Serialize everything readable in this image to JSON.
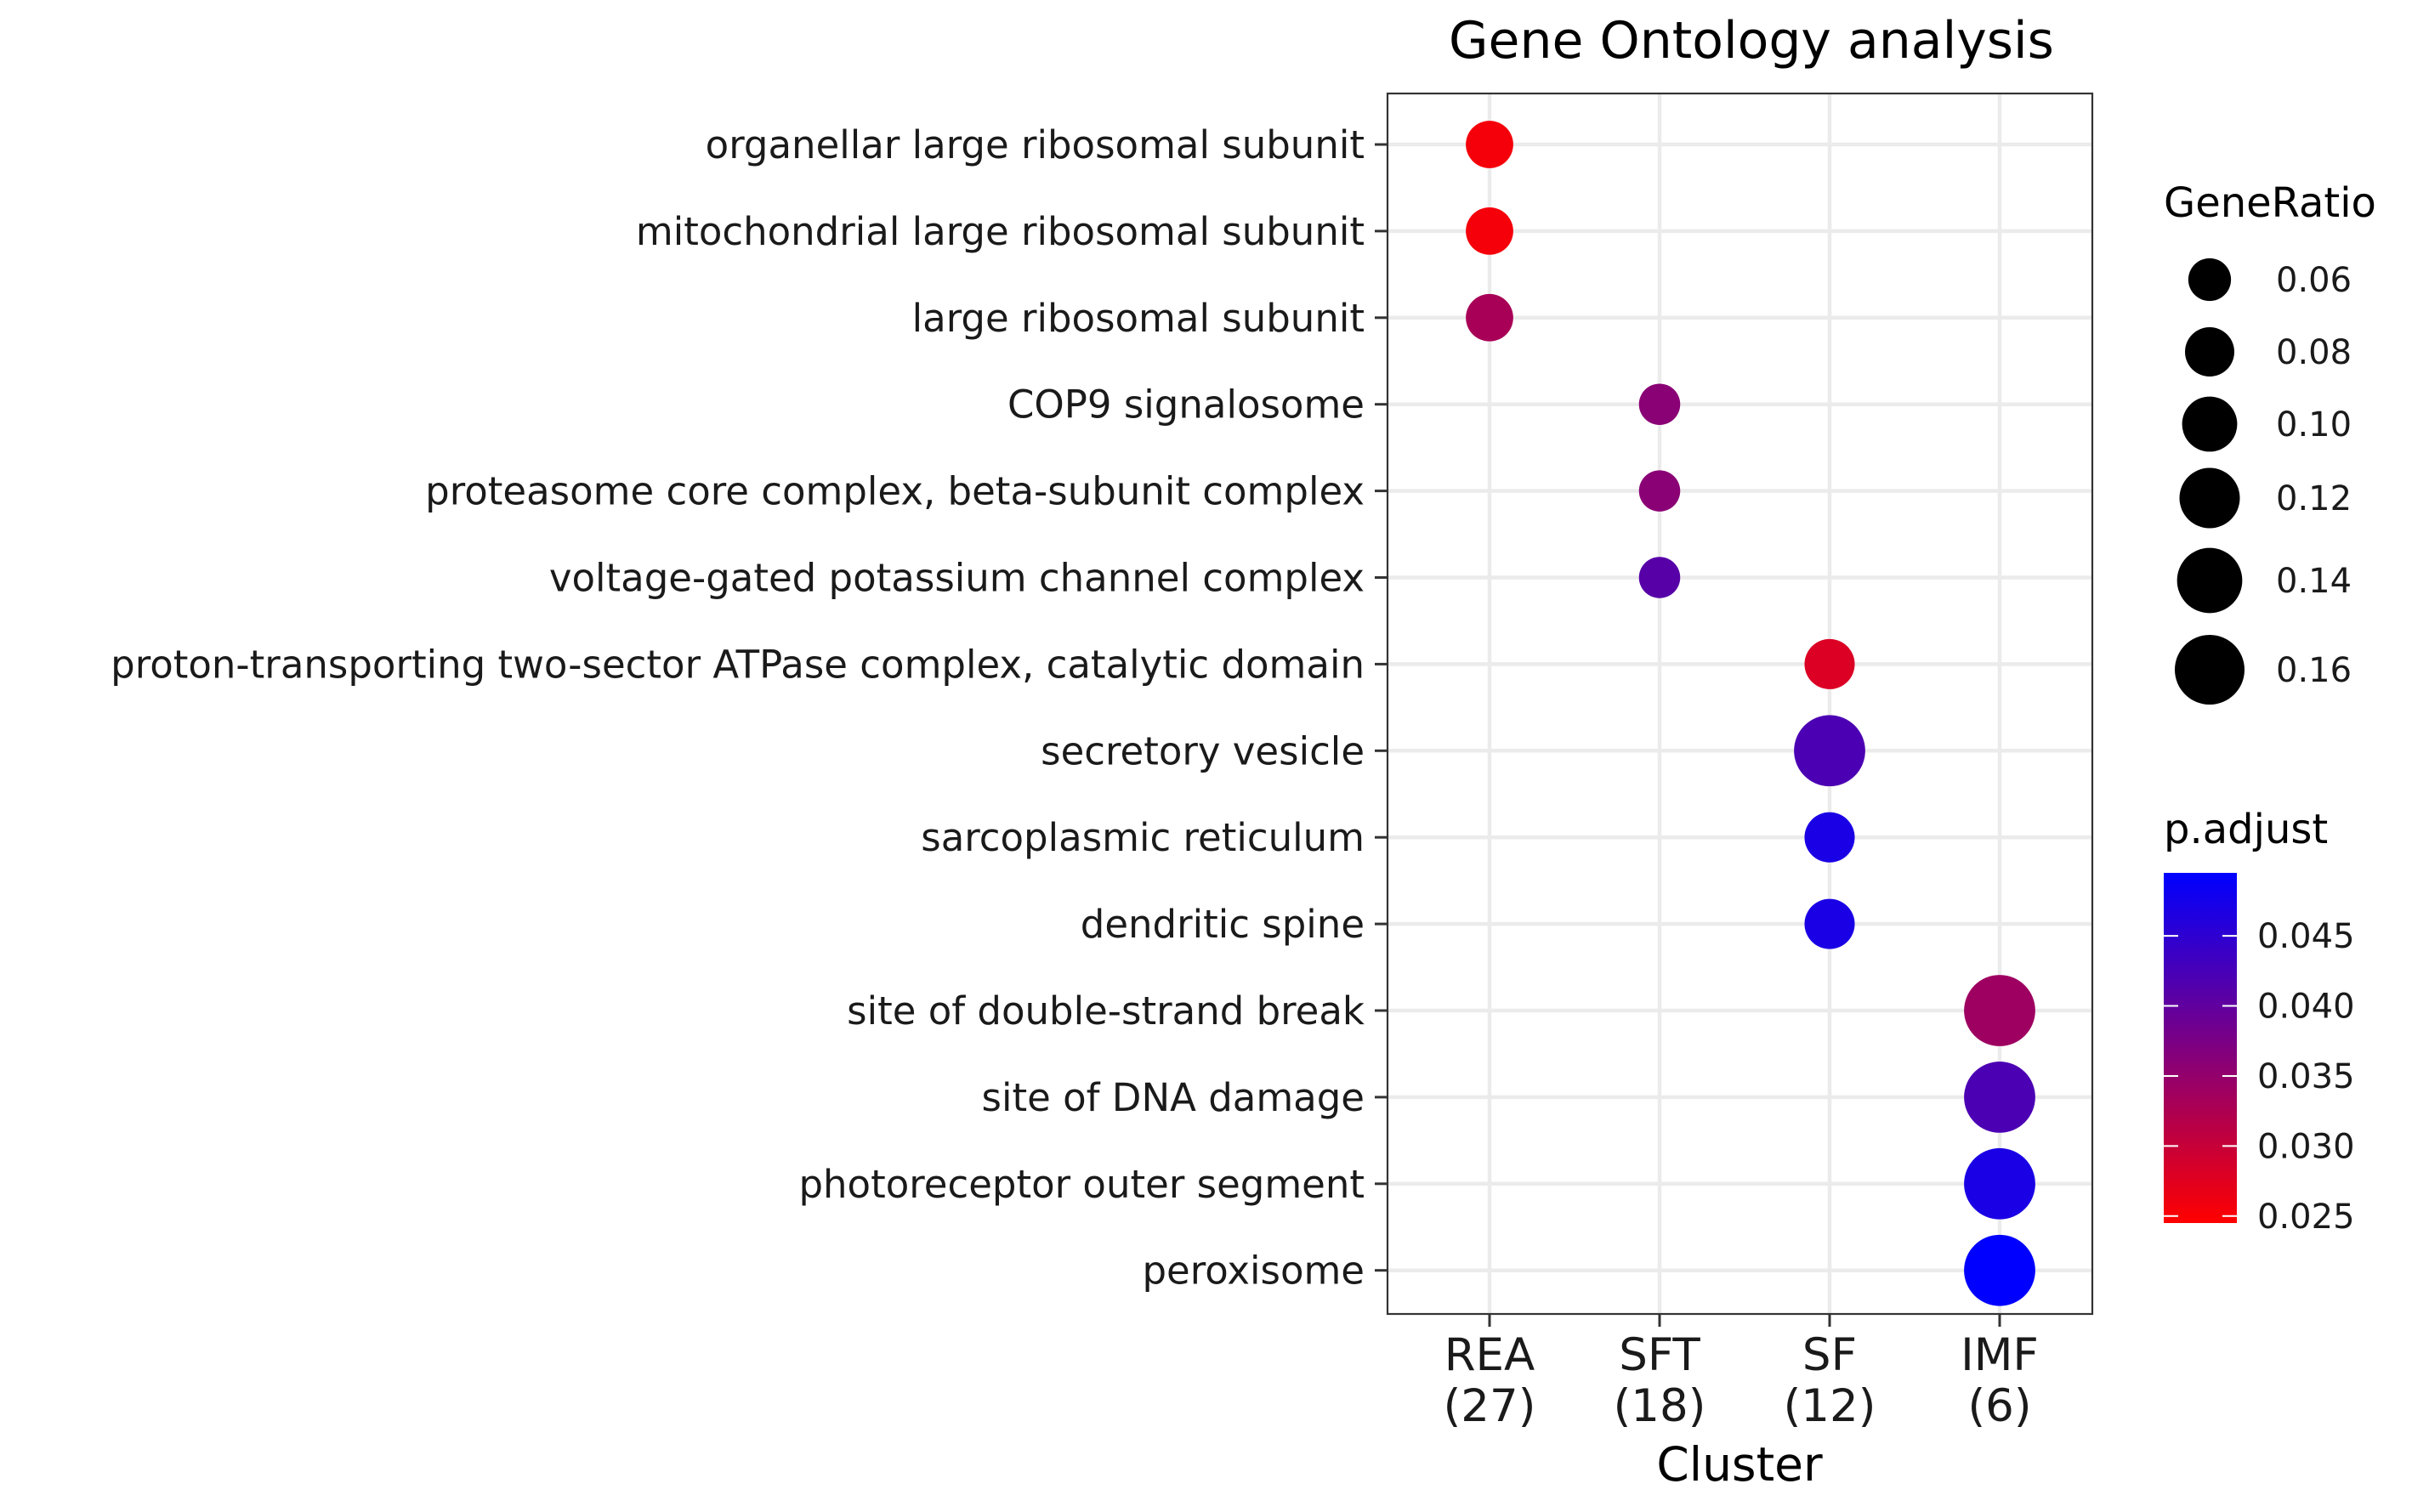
{
  "chart_data": {
    "type": "dot",
    "title": "Gene Ontology analysis",
    "xlabel": "Cluster",
    "ylabel": "",
    "clusters": [
      {
        "name": "REA",
        "count": "(27)"
      },
      {
        "name": "SFT",
        "count": "(18)"
      },
      {
        "name": "SF",
        "count": "(12)"
      },
      {
        "name": "IMF",
        "count": "(6)"
      }
    ],
    "terms": [
      "organellar large ribosomal subunit",
      "mitochondrial large ribosomal subunit",
      "large ribosomal subunit",
      "COP9 signalosome",
      "proteasome core complex, beta-subunit complex",
      "voltage-gated potassium channel complex",
      "proton-transporting two-sector ATPase complex, catalytic domain",
      "secretory vesicle",
      "sarcoplasmic reticulum",
      "dendritic spine",
      "site of double-strand break",
      "site of DNA damage",
      "photoreceptor outer segment",
      "peroxisome"
    ],
    "points": [
      {
        "term": "organellar large ribosomal subunit",
        "cluster": "REA",
        "gene_ratio": 0.074,
        "p_adjust": 0.0255
      },
      {
        "term": "mitochondrial large ribosomal subunit",
        "cluster": "REA",
        "gene_ratio": 0.074,
        "p_adjust": 0.0255
      },
      {
        "term": "large ribosomal subunit",
        "cluster": "REA",
        "gene_ratio": 0.074,
        "p_adjust": 0.033
      },
      {
        "term": "COP9 signalosome",
        "cluster": "SFT",
        "gene_ratio": 0.056,
        "p_adjust": 0.036
      },
      {
        "term": "proteasome core complex, beta-subunit complex",
        "cluster": "SFT",
        "gene_ratio": 0.056,
        "p_adjust": 0.036
      },
      {
        "term": "voltage-gated potassium channel complex",
        "cluster": "SFT",
        "gene_ratio": 0.056,
        "p_adjust": 0.041
      },
      {
        "term": "proton-transporting two-sector ATPase complex, catalytic domain",
        "cluster": "SF",
        "gene_ratio": 0.083,
        "p_adjust": 0.028
      },
      {
        "term": "secretory vesicle",
        "cluster": "SF",
        "gene_ratio": 0.167,
        "p_adjust": 0.042
      },
      {
        "term": "sarcoplasmic reticulum",
        "cluster": "SF",
        "gene_ratio": 0.083,
        "p_adjust": 0.047
      },
      {
        "term": "dendritic spine",
        "cluster": "SF",
        "gene_ratio": 0.083,
        "p_adjust": 0.047
      },
      {
        "term": "site of double-strand break",
        "cluster": "IMF",
        "gene_ratio": 0.167,
        "p_adjust": 0.034
      },
      {
        "term": "site of DNA damage",
        "cluster": "IMF",
        "gene_ratio": 0.167,
        "p_adjust": 0.042
      },
      {
        "term": "photoreceptor outer segment",
        "cluster": "IMF",
        "gene_ratio": 0.167,
        "p_adjust": 0.047
      },
      {
        "term": "peroxisome",
        "cluster": "IMF",
        "gene_ratio": 0.167,
        "p_adjust": 0.0495
      }
    ],
    "size_legend": {
      "title": "GeneRatio",
      "values": [
        0.06,
        0.08,
        0.1,
        0.12,
        0.14,
        0.16
      ],
      "labels": [
        "0.06",
        "0.08",
        "0.10",
        "0.12",
        "0.14",
        "0.16"
      ]
    },
    "color_legend": {
      "title": "p.adjust",
      "min": 0.0245,
      "max": 0.0495,
      "low_color": "#ff0000",
      "high_color": "#0000ff",
      "ticks": [
        0.025,
        0.03,
        0.035,
        0.04,
        0.045
      ],
      "tick_labels": [
        "0.025",
        "0.030",
        "0.035",
        "0.040",
        "0.045"
      ]
    },
    "panel_border": true,
    "grid": true,
    "legend_position": "right"
  }
}
